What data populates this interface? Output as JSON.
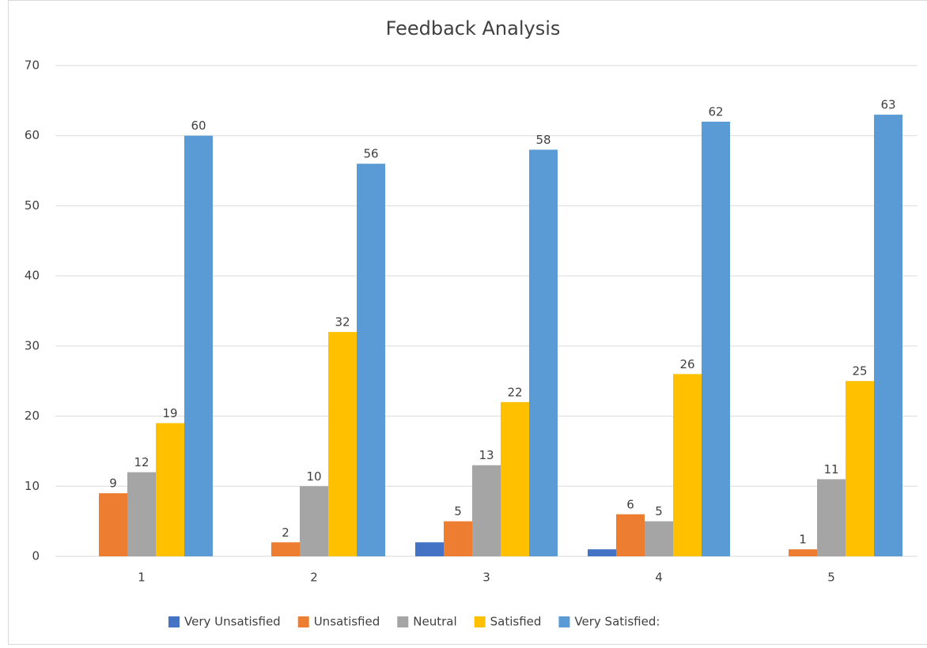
{
  "chart_data": {
    "type": "bar",
    "title": "Feedback Analysis",
    "categories": [
      "1",
      "2",
      "3",
      "4",
      "5"
    ],
    "series": [
      {
        "name": "Very Unsatisfied",
        "color": "#4472c4",
        "values": [
          0,
          0,
          2,
          1,
          0
        ],
        "data_labels": false
      },
      {
        "name": "Unsatisfied",
        "color": "#ed7d31",
        "values": [
          9,
          2,
          5,
          6,
          1
        ],
        "data_labels": true
      },
      {
        "name": "Neutral",
        "color": "#a5a5a5",
        "values": [
          12,
          10,
          13,
          5,
          11
        ],
        "data_labels": true
      },
      {
        "name": "Satisfied",
        "color": "#ffc000",
        "values": [
          19,
          32,
          22,
          26,
          25
        ],
        "data_labels": true
      },
      {
        "name": "Very Satisfied:",
        "color": "#5b9bd5",
        "values": [
          60,
          56,
          58,
          62,
          63
        ],
        "data_labels": true
      }
    ],
    "ylim": [
      0,
      70
    ],
    "yticks": [
      0,
      10,
      20,
      30,
      40,
      50,
      60,
      70
    ],
    "grid": true,
    "legend": "bottom"
  }
}
